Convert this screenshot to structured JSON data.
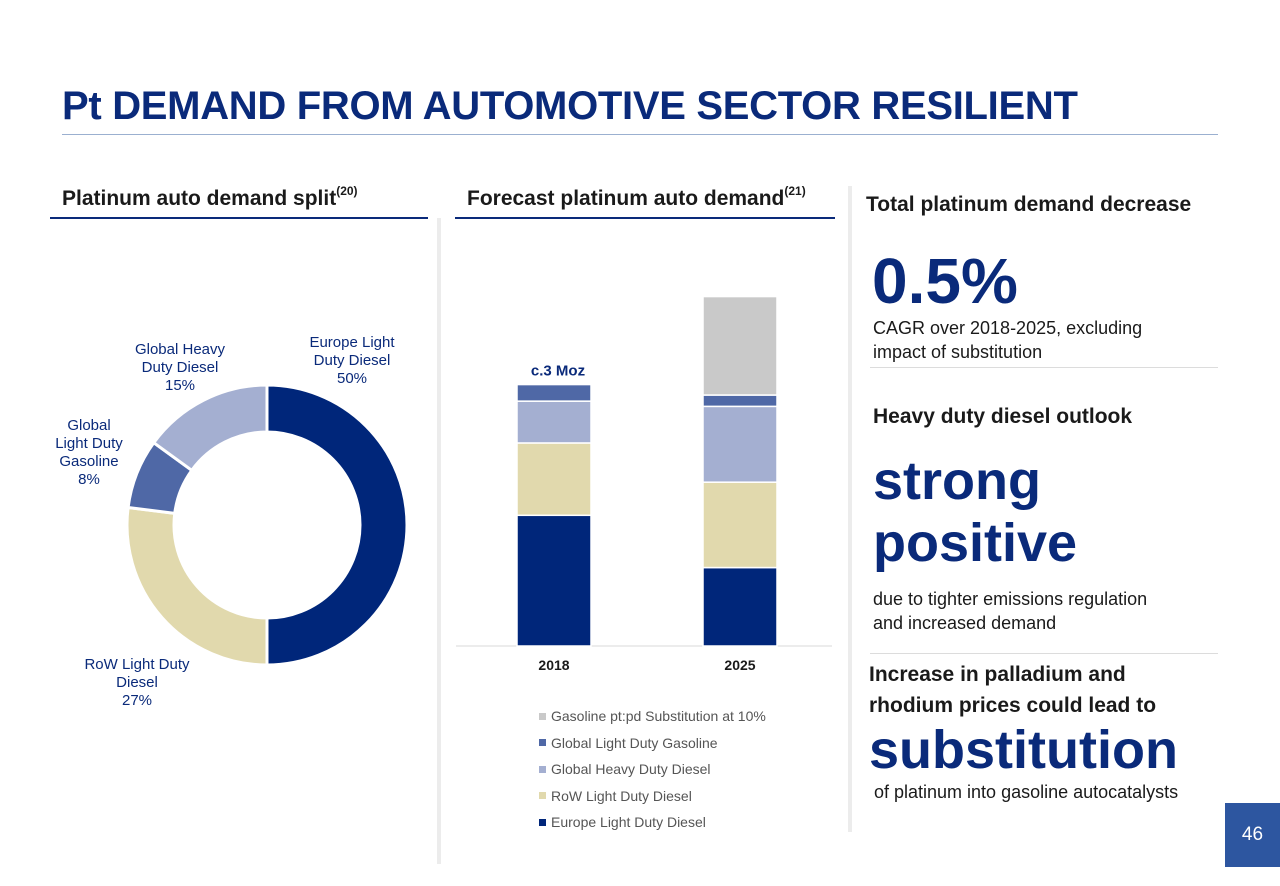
{
  "title": "Pt DEMAND FROM AUTOMOTIVE SECTOR RESILIENT",
  "left_panel": {
    "heading": "Platinum auto demand split",
    "note": "(20)"
  },
  "middle_panel": {
    "heading": "Forecast platinum auto demand",
    "note": "(21)",
    "annotation": "c.3 Moz"
  },
  "right_panel": {
    "heading": "Total platinum demand decrease",
    "big_number": "0.5%",
    "cagr_line1": "CAGR over 2018-2025, excluding",
    "cagr_line2": "impact of substitution",
    "hdd_heading": "Heavy duty diesel outlook",
    "hdd_word1": "strong",
    "hdd_word2": "positive",
    "hdd_line1": "due to tighter emissions regulation",
    "hdd_line2": "and increased demand",
    "sub_line1": "Increase in palladium and",
    "sub_line2": "rhodium prices could lead to",
    "sub_word": "substitution",
    "sub_line3": "of platinum into gasoline autocatalysts"
  },
  "page_number": "46",
  "colors": {
    "europe_ld_diesel": "#00267a",
    "row_ld_diesel": "#e1d9ad",
    "global_hd_diesel": "#a4afd1",
    "global_ld_gasoline": "#4f68a6",
    "substitution": "#c9c9c9"
  },
  "chart_data": [
    {
      "type": "pie",
      "style": "donut",
      "slices": [
        {
          "label_lines": [
            "Europe Light",
            "Duty Diesel",
            "50%"
          ],
          "value": 50,
          "color": "#00267a"
        },
        {
          "label_lines": [
            "RoW Light Duty",
            "Diesel",
            "27%"
          ],
          "value": 27,
          "color": "#e1d9ad"
        },
        {
          "label_lines": [
            "Global",
            "Light Duty",
            "Gasoline",
            "8%"
          ],
          "value": 8,
          "color": "#4f68a6"
        },
        {
          "label_lines": [
            "Global Heavy",
            "Duty Diesel",
            "15%"
          ],
          "value": 15,
          "color": "#a4afd1"
        }
      ]
    },
    {
      "type": "bar",
      "stacked": true,
      "categories": [
        "2018",
        "2025"
      ],
      "ylim": [
        0,
        4.2
      ],
      "series": [
        {
          "name": "Europe Light Duty Diesel",
          "color": "#00267a",
          "values": [
            1.5,
            0.9
          ]
        },
        {
          "name": "RoW Light Duty Diesel",
          "color": "#e1d9ad",
          "values": [
            0.83,
            0.98
          ]
        },
        {
          "name": "Global Heavy Duty Diesel",
          "color": "#a4afd1",
          "values": [
            0.48,
            0.87
          ]
        },
        {
          "name": "Global Light Duty Gasoline",
          "color": "#4f68a6",
          "values": [
            0.19,
            0.13
          ]
        },
        {
          "name": "Gasoline pt:pd Substitution at 10%",
          "color": "#c9c9c9",
          "values": [
            0,
            1.13
          ]
        }
      ],
      "legend": [
        {
          "label": "Gasoline pt:pd Substitution at 10%",
          "color": "#c9c9c9"
        },
        {
          "label": "Global Light Duty Gasoline",
          "color": "#4f68a6"
        },
        {
          "label": "Global Heavy Duty Diesel",
          "color": "#a4afd1"
        },
        {
          "label": "RoW Light Duty Diesel",
          "color": "#e1d9ad"
        },
        {
          "label": "Europe Light Duty Diesel",
          "color": "#00267a"
        }
      ],
      "legend_position": "bottom"
    }
  ]
}
